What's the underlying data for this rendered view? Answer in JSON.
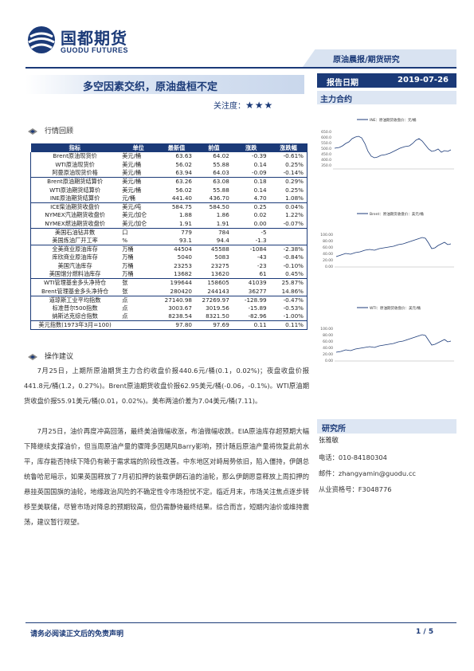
{
  "header": {
    "logo_cn": "国都期货",
    "logo_en": "GUODU FUTURES",
    "band": "原油晨报/期货研究",
    "date_label": "报告日期",
    "date_value": "2019-07-26"
  },
  "title": "多空因素交织，原油盘桓不定",
  "attention_label": "关注度：",
  "attention_stars": "★★★",
  "side_heading": "主力合约",
  "sections": {
    "review": "行情回顾",
    "advice": "操作建议"
  },
  "table": {
    "headers": [
      "指标",
      "单位",
      "最新值",
      "前值",
      "涨跌",
      "涨跌幅"
    ],
    "rows": [
      [
        "Brent原油现货价",
        "美元/桶",
        "63.63",
        "64.02",
        "-0.39",
        "-0.61%"
      ],
      [
        "WTI原油现货价",
        "美元/桶",
        "56.02",
        "55.88",
        "0.14",
        "0.25%"
      ],
      [
        "阿曼原油现货价格",
        "美元/桶",
        "63.94",
        "64.03",
        "-0.09",
        "-0.14%"
      ],
      [
        "Brent原油期货结算价",
        "美元/桶",
        "63.26",
        "63.08",
        "0.18",
        "0.29%"
      ],
      [
        "WTI原油期货结算价",
        "美元/桶",
        "56.02",
        "55.88",
        "0.14",
        "0.25%"
      ],
      [
        "INE原油期货结算价",
        "元/桶",
        "441.40",
        "436.70",
        "4.70",
        "1.08%"
      ],
      [
        "ICE柴油期货收盘价",
        "美元/吨",
        "584.75",
        "584.50",
        "0.25",
        "0.04%"
      ],
      [
        "NYMEX汽油期货收盘价",
        "美元/加仑",
        "1.88",
        "1.86",
        "0.02",
        "1.22%"
      ],
      [
        "NYMEX燃油期货收盘价",
        "美元/加仑",
        "1.91",
        "1.91",
        "0.00",
        "-0.07%"
      ],
      [
        "美国石油钻井数",
        "口",
        "779",
        "784",
        "-5",
        ""
      ],
      [
        "美国炼油厂开工率",
        "%",
        "93.1",
        "94.4",
        "-1.3",
        ""
      ],
      [
        "全美商业原油库存",
        "万桶",
        "44504",
        "45588",
        "-1084",
        "-2.38%"
      ],
      [
        "库欣商业原油库存",
        "万桶",
        "5040",
        "5083",
        "-43",
        "-0.84%"
      ],
      [
        "美国汽油库存",
        "万桶",
        "23253",
        "23275",
        "-23",
        "-0.10%"
      ],
      [
        "美国馏分燃料油库存",
        "万桶",
        "13682",
        "13620",
        "61",
        "0.45%"
      ],
      [
        "WTI管理基金多头净持仓",
        "张",
        "199644",
        "158605",
        "41039",
        "25.87%"
      ],
      [
        "Brent管理基金多头净持仓",
        "张",
        "280420",
        "244143",
        "36277",
        "14.86%"
      ],
      [
        "道琼斯工业平均指数",
        "点",
        "27140.98",
        "27269.97",
        "-128.99",
        "-0.47%"
      ],
      [
        "标准普尔500指数",
        "点",
        "3003.67",
        "3019.56",
        "-15.89",
        "-0.53%"
      ],
      [
        "纳斯达克综合指数",
        "点",
        "8238.54",
        "8321.50",
        "-82.96",
        "-1.00%"
      ],
      [
        "美元指数(1973年3月=100)",
        "",
        "97.80",
        "97.69",
        "0.11",
        "0.11%"
      ]
    ]
  },
  "paragraphs": [
    "7月25日，上期所原油期货主力合约收盘价报440.6元/桶(0.1，0.02%)；夜盘收盘价报441.8元/桶(1.2，0.27%)。Brent原油期货收盘价报62.95美元/桶(-0.06，-0.1%)。WTI原油期货收盘价报55.91美元/桶(0.01，0.02%)。美布两油价差为7.04美元/桶(7.11)。",
    "7月25日，油价再度冲高回落，最终美油微幅收涨，布油微幅收跌。EIA原油库存超预期大幅下降继续支撑油价，但当周原油产量的骤降多因飓风Barry影响，预计随后原油产量将恢复此前水平，库存能否持续下降仍有赖于需求端的阶段性改善。中东地区对峙局势依旧，陷入僵持，伊朗总统鲁哈尼暗示，如果英国释放了7月初扣押的装载伊朗石油的油轮，那么伊朗愿意释放上周扣押的悬挂英国国旗的油轮，地缘政治风险的不确定性令市场担忧不定。临近月末，市场关注焦点逐步转移至美联储，尽管市场对降息的预期较高，但仍需静待最终结果。综合而言，短期内油价或维持震荡，建议暂行观望。"
  ],
  "charts": [
    {
      "legend": "INE：原油期货收盘价：元/桶",
      "yticks": [
        "650.0",
        "600.0",
        "550.0",
        "500.0",
        "450.0",
        "400.0",
        "350.0",
        "300.0"
      ]
    },
    {
      "legend": "Brent：原油期货收盘价：美元/桶",
      "yticks": [
        "100.00",
        "80.00",
        "60.00",
        "40.00",
        "20.00",
        "0.00"
      ]
    },
    {
      "legend": "WTI：原油期货收盘价：美元/桶",
      "yticks": [
        "100.00",
        "80.00",
        "60.00",
        "40.00",
        "20.00",
        "0.00"
      ]
    }
  ],
  "research": {
    "heading": "研究所",
    "name": "张雅敏",
    "phone": "电话：010-84180304",
    "email": "邮件：zhangyamin@guodu.cc",
    "cert": "从业资格号：F3048776"
  },
  "footer": {
    "disclaimer": "请务必阅读正文后的免责声明",
    "page": "1 / 5"
  },
  "colors": {
    "brand": "#1b3a78",
    "light_band": "#dde6f3"
  }
}
